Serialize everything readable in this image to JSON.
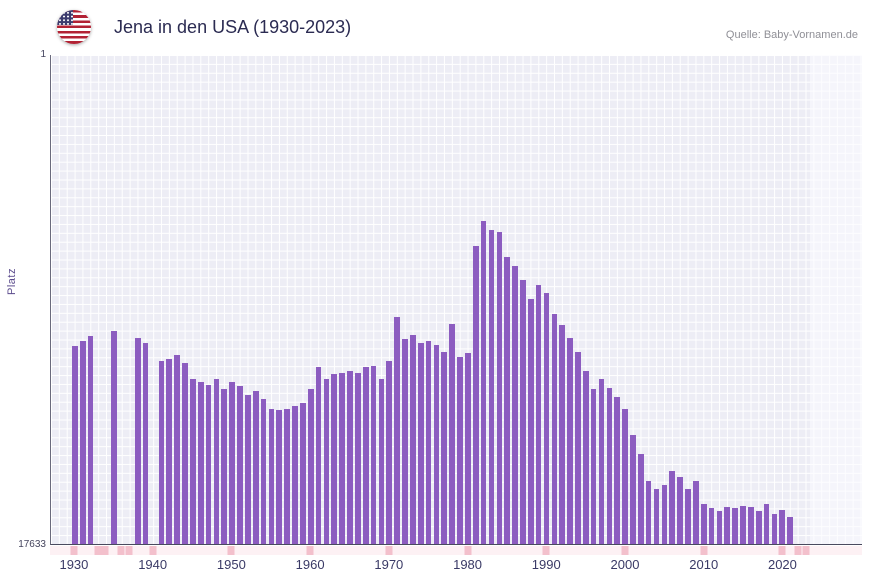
{
  "header": {
    "title": "Jena in den USA (1930-2023)",
    "source": "Quelle: Baby-Vornamen.de",
    "flag_icon": "us-flag-icon"
  },
  "axes": {
    "y_top_label": "1",
    "y_bottom_label": "17633",
    "y_axis_title": "Platz",
    "x_ticks": [
      "1930",
      "1940",
      "1950",
      "1960",
      "1970",
      "1980",
      "1990",
      "2000",
      "2010",
      "2020"
    ]
  },
  "colors": {
    "bar": "#8c5cc0",
    "plot_bg": "#ededf5",
    "grid": "#ffffff",
    "tick_pink": "#f3c0cc",
    "strip_pink": "#fdf1f4",
    "title": "#2b2b52",
    "tick_text": "#3a3a66"
  },
  "chart_data": {
    "type": "bar",
    "title": "Jena in den USA (1930-2023)",
    "xlabel": "",
    "ylabel": "Platz",
    "y_axis_inverted": true,
    "ylim": [
      1,
      17633
    ],
    "grid": true,
    "years": [
      1930,
      1931,
      1932,
      1933,
      1934,
      1935,
      1936,
      1937,
      1938,
      1939,
      1940,
      1941,
      1942,
      1943,
      1944,
      1945,
      1946,
      1947,
      1948,
      1949,
      1950,
      1951,
      1952,
      1953,
      1954,
      1955,
      1956,
      1957,
      1958,
      1959,
      1960,
      1961,
      1962,
      1963,
      1964,
      1965,
      1966,
      1967,
      1968,
      1969,
      1970,
      1971,
      1972,
      1973,
      1974,
      1975,
      1976,
      1977,
      1978,
      1979,
      1980,
      1981,
      1982,
      1983,
      1984,
      1985,
      1986,
      1987,
      1988,
      1989,
      1990,
      1991,
      1992,
      1993,
      1994,
      1995,
      1996,
      1997,
      1998,
      1999,
      2000,
      2001,
      2002,
      2003,
      2004,
      2005,
      2006,
      2007,
      2008,
      2009,
      2010,
      2011,
      2012,
      2013,
      2014,
      2015,
      2016,
      2017,
      2018,
      2019,
      2020,
      2021,
      2022,
      2023
    ],
    "ranks": [
      10500,
      10300,
      10150,
      null,
      null,
      9950,
      null,
      null,
      10200,
      10400,
      null,
      11050,
      10950,
      10800,
      11100,
      11700,
      11800,
      11900,
      11700,
      12050,
      11800,
      11950,
      12250,
      12100,
      12400,
      12750,
      12800,
      12750,
      12650,
      12550,
      12050,
      11250,
      11700,
      11500,
      11450,
      11400,
      11450,
      11250,
      11200,
      11700,
      11050,
      9450,
      10250,
      10100,
      10400,
      10300,
      10450,
      10700,
      9700,
      10900,
      10750,
      6900,
      6000,
      6300,
      6400,
      7300,
      7600,
      8100,
      8800,
      8300,
      8600,
      9350,
      9750,
      10200,
      10700,
      11400,
      12050,
      11700,
      12000,
      12350,
      12750,
      13700,
      14400,
      15350,
      15650,
      15500,
      15000,
      15200,
      15650,
      15350,
      16200,
      16350,
      16450,
      16300,
      16350,
      16250,
      16300,
      16450,
      16200,
      16550,
      16400,
      16650,
      null,
      null
    ]
  }
}
